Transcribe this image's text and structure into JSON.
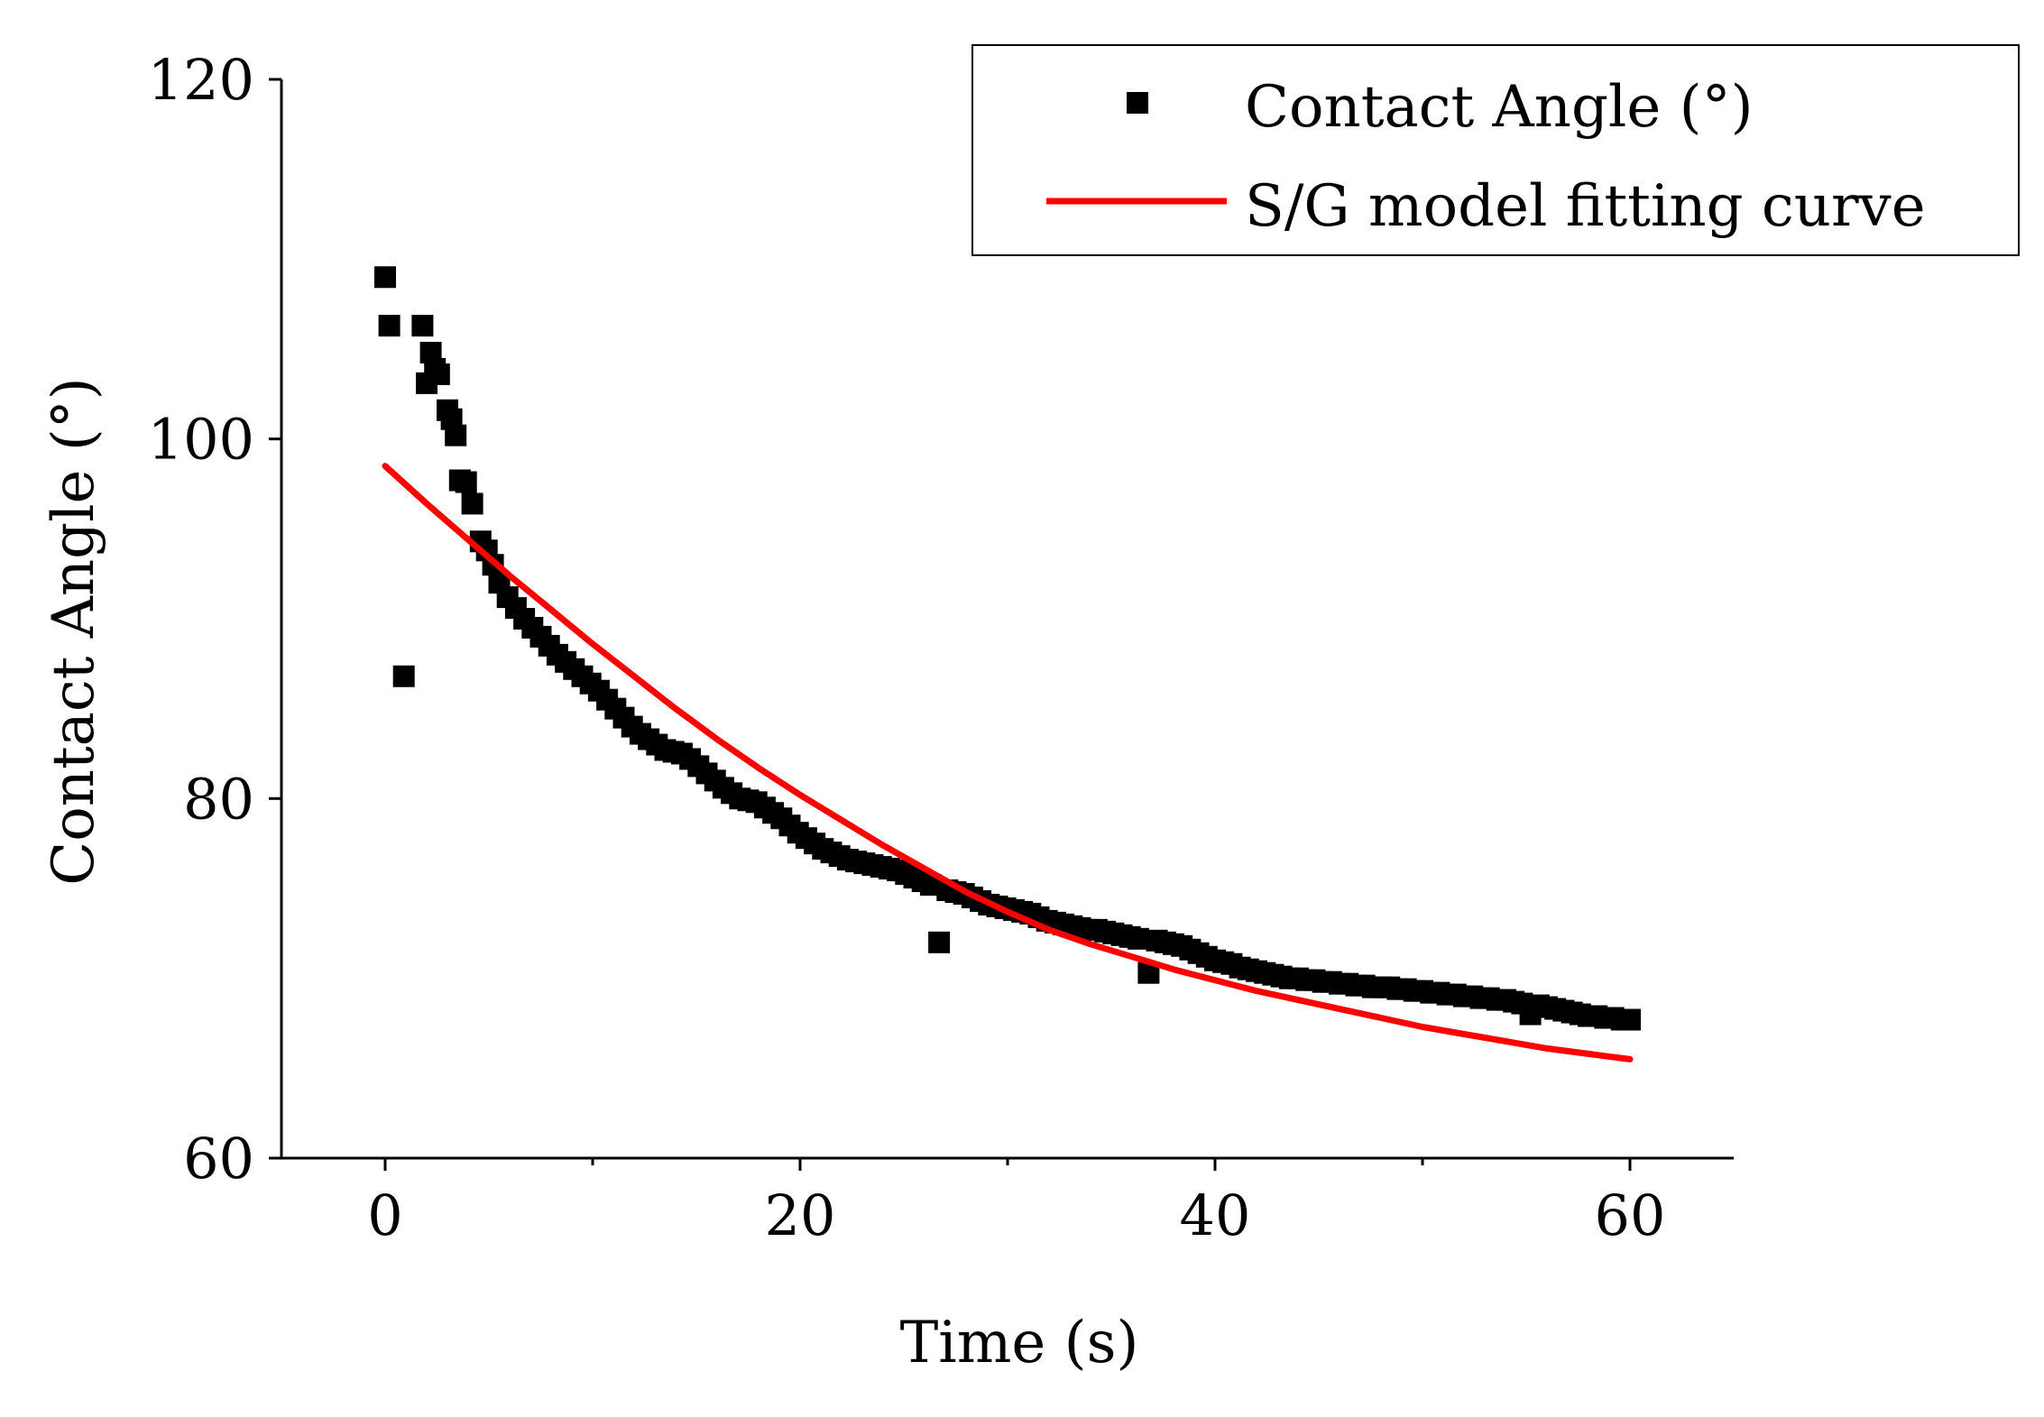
{
  "chart_data": {
    "type": "scatter",
    "title": "",
    "xlabel": "Time (s)",
    "ylabel": "Contact Angle (°)",
    "xlim": [
      -5,
      65
    ],
    "ylim": [
      60,
      120
    ],
    "x_ticks": [
      0,
      20,
      40,
      60
    ],
    "x_tick_labels": [
      "0",
      "20",
      "40",
      "60"
    ],
    "y_ticks": [
      60,
      80,
      100,
      120
    ],
    "y_tick_labels": [
      "60",
      "80",
      "100",
      "120"
    ],
    "x_minor_ticks": [
      10,
      30,
      50
    ],
    "grid": false,
    "legend_position": "top-right",
    "series": [
      {
        "name": "Contact Angle (°)",
        "kind": "scatter",
        "marker": "square",
        "color": "#000000",
        "points": [
          [
            0.0,
            109.0
          ],
          [
            0.2,
            106.3
          ],
          [
            0.9,
            86.8
          ],
          [
            1.8,
            106.3
          ],
          [
            2.0,
            103.1
          ],
          [
            2.2,
            104.8
          ],
          [
            2.4,
            103.9
          ],
          [
            2.6,
            103.6
          ],
          [
            3.0,
            101.6
          ],
          [
            3.2,
            101.1
          ],
          [
            3.4,
            100.2
          ],
          [
            3.6,
            97.7
          ],
          [
            3.9,
            97.6
          ],
          [
            4.2,
            96.4
          ],
          [
            4.6,
            94.3
          ],
          [
            4.9,
            93.8
          ],
          [
            5.2,
            93.0
          ],
          [
            5.5,
            92.0
          ],
          [
            5.9,
            91.2
          ],
          [
            6.3,
            90.6
          ],
          [
            6.7,
            90.0
          ],
          [
            7.1,
            89.5
          ],
          [
            7.5,
            89.0
          ],
          [
            7.9,
            88.5
          ],
          [
            8.3,
            88.0
          ],
          [
            8.7,
            87.6
          ],
          [
            9.1,
            87.2
          ],
          [
            9.5,
            86.8
          ],
          [
            9.9,
            86.4
          ],
          [
            10.3,
            86.0
          ],
          [
            10.7,
            85.5
          ],
          [
            11.1,
            85.0
          ],
          [
            11.5,
            84.5
          ],
          [
            11.9,
            84.0
          ],
          [
            12.3,
            83.6
          ],
          [
            12.7,
            83.3
          ],
          [
            13.1,
            83.0
          ],
          [
            13.5,
            82.7
          ],
          [
            13.9,
            82.6
          ],
          [
            14.3,
            82.5
          ],
          [
            14.7,
            82.2
          ],
          [
            15.1,
            81.8
          ],
          [
            15.5,
            81.4
          ],
          [
            15.9,
            81.0
          ],
          [
            16.3,
            80.6
          ],
          [
            16.7,
            80.3
          ],
          [
            17.1,
            80.0
          ],
          [
            17.5,
            79.9
          ],
          [
            17.9,
            79.8
          ],
          [
            18.3,
            79.5
          ],
          [
            18.7,
            79.2
          ],
          [
            19.1,
            78.9
          ],
          [
            19.5,
            78.5
          ],
          [
            19.9,
            78.1
          ],
          [
            20.3,
            77.8
          ],
          [
            20.7,
            77.5
          ],
          [
            21.1,
            77.2
          ],
          [
            21.5,
            77.0
          ],
          [
            21.9,
            76.8
          ],
          [
            22.3,
            76.6
          ],
          [
            22.7,
            76.5
          ],
          [
            23.1,
            76.4
          ],
          [
            23.5,
            76.3
          ],
          [
            23.9,
            76.2
          ],
          [
            24.3,
            76.1
          ],
          [
            24.7,
            76.0
          ],
          [
            25.1,
            75.8
          ],
          [
            25.5,
            75.6
          ],
          [
            25.9,
            75.4
          ],
          [
            26.3,
            75.2
          ],
          [
            26.7,
            72.0
          ],
          [
            27.1,
            74.9
          ],
          [
            27.5,
            74.8
          ],
          [
            27.9,
            74.7
          ],
          [
            28.3,
            74.5
          ],
          [
            28.7,
            74.3
          ],
          [
            29.1,
            74.1
          ],
          [
            29.5,
            74.0
          ],
          [
            29.9,
            73.9
          ],
          [
            30.3,
            73.8
          ],
          [
            30.7,
            73.7
          ],
          [
            31.1,
            73.6
          ],
          [
            31.5,
            73.4
          ],
          [
            31.9,
            73.2
          ],
          [
            32.3,
            73.1
          ],
          [
            32.7,
            73.0
          ],
          [
            33.1,
            72.9
          ],
          [
            33.5,
            72.8
          ],
          [
            33.9,
            72.7
          ],
          [
            34.3,
            72.7
          ],
          [
            34.7,
            72.6
          ],
          [
            35.1,
            72.5
          ],
          [
            35.5,
            72.4
          ],
          [
            35.9,
            72.3
          ],
          [
            36.3,
            72.2
          ],
          [
            36.8,
            70.3
          ],
          [
            37.2,
            72.1
          ],
          [
            37.6,
            72.0
          ],
          [
            38.0,
            71.9
          ],
          [
            38.4,
            71.8
          ],
          [
            38.8,
            71.6
          ],
          [
            39.2,
            71.4
          ],
          [
            39.6,
            71.2
          ],
          [
            40.0,
            71.0
          ],
          [
            40.4,
            70.9
          ],
          [
            40.8,
            70.8
          ],
          [
            41.2,
            70.6
          ],
          [
            41.6,
            70.5
          ],
          [
            42.0,
            70.4
          ],
          [
            42.4,
            70.3
          ],
          [
            42.8,
            70.2
          ],
          [
            43.2,
            70.1
          ],
          [
            43.6,
            70.0
          ],
          [
            44.0,
            70.0
          ],
          [
            44.4,
            69.9
          ],
          [
            44.8,
            69.9
          ],
          [
            45.2,
            69.8
          ],
          [
            45.6,
            69.8
          ],
          [
            46.0,
            69.7
          ],
          [
            46.4,
            69.7
          ],
          [
            46.8,
            69.6
          ],
          [
            47.2,
            69.6
          ],
          [
            47.6,
            69.5
          ],
          [
            48.0,
            69.5
          ],
          [
            48.4,
            69.5
          ],
          [
            48.8,
            69.4
          ],
          [
            49.2,
            69.4
          ],
          [
            49.6,
            69.3
          ],
          [
            50.0,
            69.3
          ],
          [
            50.4,
            69.2
          ],
          [
            50.8,
            69.2
          ],
          [
            51.2,
            69.1
          ],
          [
            51.6,
            69.1
          ],
          [
            52.0,
            69.0
          ],
          [
            52.4,
            69.0
          ],
          [
            52.8,
            68.9
          ],
          [
            53.2,
            68.9
          ],
          [
            53.6,
            68.8
          ],
          [
            54.0,
            68.8
          ],
          [
            54.4,
            68.7
          ],
          [
            54.8,
            68.6
          ],
          [
            55.2,
            68.0
          ],
          [
            55.6,
            68.5
          ],
          [
            56.0,
            68.4
          ],
          [
            56.4,
            68.3
          ],
          [
            56.8,
            68.2
          ],
          [
            57.2,
            68.1
          ],
          [
            57.6,
            68.0
          ],
          [
            58.0,
            67.9
          ],
          [
            58.4,
            67.9
          ],
          [
            58.8,
            67.8
          ],
          [
            59.2,
            67.8
          ],
          [
            59.6,
            67.7
          ],
          [
            60.0,
            67.7
          ]
        ]
      },
      {
        "name": "S/G model fitting curve",
        "kind": "line",
        "color": "#ff0000",
        "points": [
          [
            0,
            98.5
          ],
          [
            2,
            96.4
          ],
          [
            4,
            94.4
          ],
          [
            6,
            92.4
          ],
          [
            8,
            90.5
          ],
          [
            10,
            88.6
          ],
          [
            12,
            86.8
          ],
          [
            14,
            85.0
          ],
          [
            16,
            83.3
          ],
          [
            18,
            81.7
          ],
          [
            20,
            80.2
          ],
          [
            22,
            78.8
          ],
          [
            24,
            77.4
          ],
          [
            26,
            76.1
          ],
          [
            28,
            74.8
          ],
          [
            30,
            73.7
          ],
          [
            32,
            72.7
          ],
          [
            34,
            71.9
          ],
          [
            36,
            71.2
          ],
          [
            38,
            70.5
          ],
          [
            40,
            69.9
          ],
          [
            42,
            69.3
          ],
          [
            44,
            68.8
          ],
          [
            46,
            68.3
          ],
          [
            48,
            67.8
          ],
          [
            50,
            67.3
          ],
          [
            52,
            66.9
          ],
          [
            54,
            66.5
          ],
          [
            56,
            66.1
          ],
          [
            58,
            65.8
          ],
          [
            60,
            65.5
          ]
        ]
      }
    ]
  }
}
